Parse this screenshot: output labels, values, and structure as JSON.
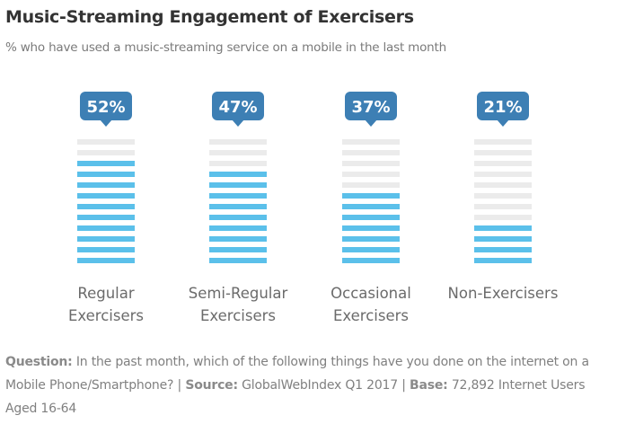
{
  "chart_data": {
    "type": "bar",
    "title": "Music-Streaming Engagement of Exercisers",
    "subtitle": "% who have used a music-streaming service on a mobile in the last month",
    "categories": [
      "Regular Exercisers",
      "Semi-Regular Exercisers",
      "Occasional Exercisers",
      "Non-Exercisers"
    ],
    "values": [
      52,
      47,
      37,
      21
    ],
    "value_labels": [
      "52%",
      "47%",
      "37%",
      "21%"
    ],
    "color": "#5bc0ea",
    "ylim": [
      0,
      60
    ]
  },
  "footer": {
    "question_label": "Question:",
    "question": "In the past month, which of the following things have you done on the internet on a Mobile Phone/Smartphone?",
    "separator": "|",
    "source_label": "Source:",
    "source": "GlobalWebIndex Q1 2017",
    "base_label": "Base:",
    "base": "72,892 Internet Users Aged 16-64"
  }
}
